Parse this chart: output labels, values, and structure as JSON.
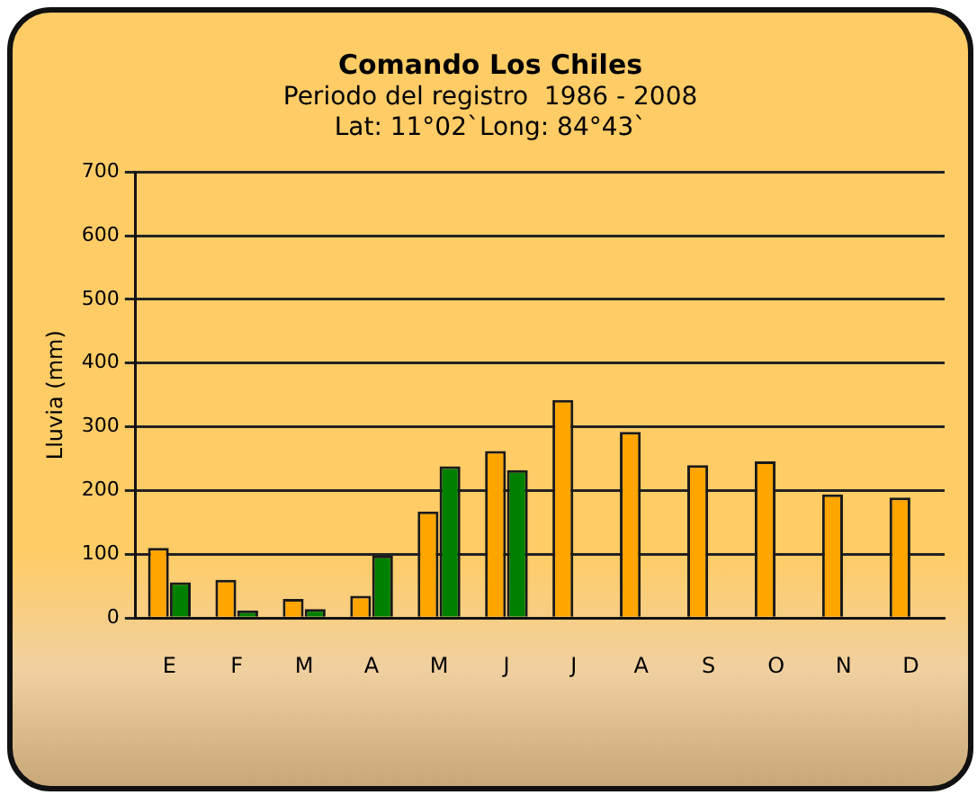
{
  "chart_data": {
    "type": "bar",
    "title": "Comando Los Chiles",
    "subtitle": "Periodo del registro  1986 - 2008\nLat: 11°02`Long: 84°43`",
    "ylabel": "Lluvia (mm)",
    "categories": [
      "E",
      "F",
      "M",
      "A",
      "M",
      "J",
      "J",
      "A",
      "S",
      "O",
      "N",
      "D"
    ],
    "series": [
      {
        "color": "#ffa500",
        "values": [
          110,
          60,
          30,
          35,
          167,
          262,
          342,
          292,
          240,
          246,
          194,
          189
        ]
      },
      {
        "color": "#008000",
        "values": [
          56,
          12,
          14,
          98,
          238,
          232,
          null,
          null,
          null,
          null,
          null,
          null
        ]
      }
    ],
    "ylim": [
      0,
      700
    ],
    "yticks": [
      0,
      100,
      200,
      300,
      400,
      500,
      600,
      700
    ],
    "grid": "y",
    "legend": false
  }
}
